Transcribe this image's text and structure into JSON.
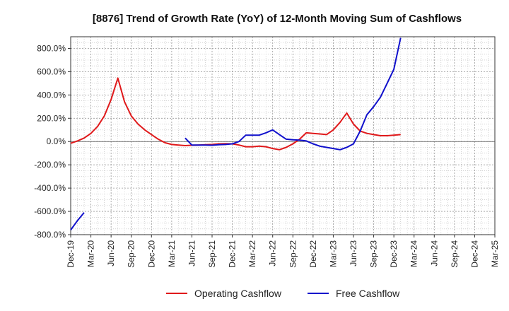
{
  "chart_data": {
    "type": "line",
    "title": "[8876]  Trend of Growth Rate (YoY) of 12-Month Moving Sum of Cashflows",
    "xlabel": "",
    "ylabel": "",
    "ylim": [
      -800,
      900
    ],
    "yticks": [
      -800,
      -600,
      -400,
      -200,
      0,
      200,
      400,
      600,
      800
    ],
    "ytick_labels": [
      "-800.0%",
      "-600.0%",
      "-400.0%",
      "-200.0%",
      "0.0%",
      "200.0%",
      "400.0%",
      "600.0%",
      "800.0%"
    ],
    "xtick_labels": [
      "Dec-19",
      "Mar-20",
      "Jun-20",
      "Sep-20",
      "Dec-20",
      "Mar-21",
      "Jun-21",
      "Sep-21",
      "Dec-21",
      "Mar-22",
      "Jun-22",
      "Sep-22",
      "Dec-22",
      "Mar-23",
      "Jun-23",
      "Sep-23",
      "Dec-23",
      "Mar-24",
      "Jun-24",
      "Sep-24",
      "Dec-24",
      "Mar-25"
    ],
    "grid": true,
    "legend_position": "bottom",
    "series": [
      {
        "name": "Operating Cashflow",
        "color": "#e0191b",
        "values": [
          -15,
          5,
          30,
          70,
          130,
          220,
          360,
          545,
          340,
          220,
          150,
          100,
          60,
          20,
          -10,
          -25,
          -30,
          -35,
          -32,
          -30,
          -28,
          -25,
          -20,
          -18,
          -20,
          -30,
          -45,
          -45,
          -40,
          -45,
          -60,
          -70,
          -50,
          -20,
          20,
          75,
          70,
          65,
          60,
          100,
          165,
          245,
          150,
          90,
          70,
          60,
          50,
          50,
          55,
          60
        ]
      },
      {
        "name": "Free Cashflow",
        "color": "#1010cc",
        "values": [
          -760,
          -680,
          -610,
          null,
          null,
          null,
          null,
          null,
          null,
          null,
          null,
          null,
          null,
          null,
          null,
          null,
          null,
          30,
          -30,
          -30,
          -30,
          -32,
          -28,
          -25,
          -20,
          0,
          55,
          55,
          55,
          75,
          100,
          60,
          20,
          15,
          12,
          5,
          -20,
          -40,
          -50,
          -60,
          -70,
          -50,
          -20,
          90,
          230,
          300,
          380,
          500,
          620,
          890
        ]
      }
    ]
  }
}
